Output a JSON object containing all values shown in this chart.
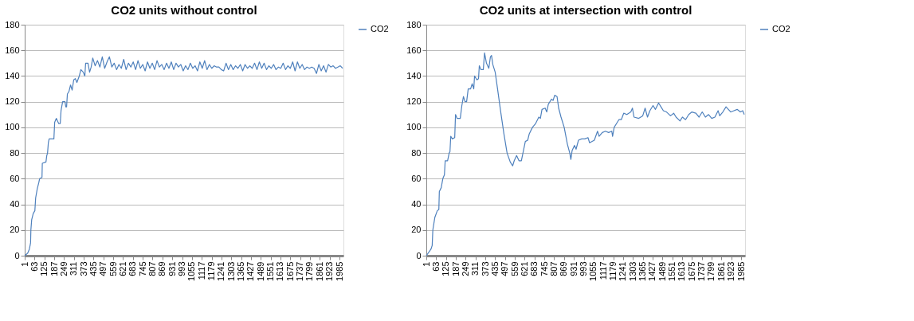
{
  "chart_data": [
    {
      "type": "line",
      "title": "CO2 units without control",
      "legend": "right",
      "grid": "y",
      "xlim": [
        1,
        2010
      ],
      "xticks": [
        1,
        63,
        125,
        187,
        249,
        311,
        373,
        435,
        497,
        559,
        621,
        683,
        745,
        807,
        869,
        931,
        993,
        1055,
        1117,
        1179,
        1241,
        1303,
        1365,
        1427,
        1489,
        1551,
        1613,
        1675,
        1737,
        1799,
        1861,
        1923,
        1985
      ],
      "ylim": [
        0,
        180
      ],
      "yticks": [
        0,
        20,
        40,
        60,
        80,
        100,
        120,
        140,
        160,
        180
      ],
      "series": [
        {
          "name": "CO2",
          "color": "#4f81bd",
          "x": [
            1,
            20,
            30,
            35,
            38,
            40,
            45,
            55,
            65,
            70,
            80,
            90,
            95,
            110,
            112,
            135,
            140,
            145,
            150,
            155,
            185,
            190,
            200,
            215,
            225,
            230,
            240,
            255,
            260,
            265,
            270,
            280,
            290,
            300,
            310,
            320,
            330,
            345,
            355,
            370,
            380,
            385,
            400,
            410,
            420,
            430,
            445,
            460,
            475,
            490,
            505,
            520,
            535,
            550,
            565,
            580,
            595,
            610,
            625,
            640,
            655,
            670,
            685,
            700,
            715,
            730,
            745,
            760,
            775,
            790,
            805,
            820,
            835,
            850,
            865,
            880,
            895,
            910,
            925,
            940,
            955,
            970,
            985,
            1000,
            1015,
            1030,
            1045,
            1060,
            1075,
            1090,
            1105,
            1120,
            1135,
            1150,
            1165,
            1180,
            1195,
            1210,
            1225,
            1240,
            1255,
            1270,
            1285,
            1300,
            1315,
            1330,
            1345,
            1360,
            1375,
            1390,
            1405,
            1420,
            1435,
            1450,
            1465,
            1480,
            1495,
            1510,
            1525,
            1540,
            1555,
            1570,
            1585,
            1600,
            1615,
            1630,
            1645,
            1660,
            1675,
            1690,
            1705,
            1720,
            1735,
            1750,
            1765,
            1780,
            1795,
            1810,
            1825,
            1840,
            1855,
            1870,
            1885,
            1900,
            1915,
            1930,
            1945,
            1960,
            1975,
            1990,
            2005
          ],
          "values": [
            0,
            2,
            5,
            8,
            10,
            20,
            28,
            33,
            35,
            45,
            52,
            57,
            60,
            61,
            72,
            73,
            78,
            80,
            88,
            91,
            91,
            104,
            107,
            103,
            103,
            113,
            120,
            120,
            116,
            116,
            126,
            128,
            133,
            129,
            137,
            138,
            135,
            140,
            145,
            143,
            140,
            150,
            150,
            143,
            147,
            154,
            148,
            152,
            147,
            155,
            146,
            151,
            155,
            147,
            150,
            145,
            149,
            146,
            153,
            145,
            150,
            147,
            151,
            145,
            152,
            146,
            149,
            144,
            151,
            146,
            150,
            145,
            152,
            147,
            149,
            145,
            150,
            146,
            151,
            145,
            150,
            147,
            149,
            144,
            148,
            145,
            150,
            146,
            148,
            144,
            151,
            146,
            152,
            145,
            149,
            146,
            148,
            147,
            147,
            145,
            144,
            150,
            145,
            149,
            145,
            148,
            146,
            149,
            144,
            149,
            146,
            148,
            146,
            150,
            145,
            151,
            146,
            150,
            145,
            148,
            146,
            149,
            145,
            147,
            146,
            150,
            145,
            148,
            146,
            151,
            144,
            151,
            146,
            149,
            145,
            147,
            146,
            147,
            146,
            142,
            149,
            144,
            148,
            143,
            149,
            147,
            148,
            146,
            147,
            148,
            146
          ]
        }
      ]
    },
    {
      "type": "line",
      "title": "CO2 units at intersection with control",
      "legend": "right",
      "grid": "y",
      "xlim": [
        1,
        2010
      ],
      "xticks": [
        1,
        63,
        125,
        187,
        249,
        311,
        373,
        435,
        497,
        559,
        621,
        683,
        745,
        807,
        869,
        931,
        993,
        1055,
        1117,
        1179,
        1241,
        1303,
        1365,
        1427,
        1489,
        1551,
        1613,
        1675,
        1737,
        1799,
        1861,
        1923,
        1985
      ],
      "ylim": [
        0,
        180
      ],
      "yticks": [
        0,
        20,
        40,
        60,
        80,
        100,
        120,
        140,
        160,
        180
      ],
      "series": [
        {
          "name": "CO2",
          "color": "#4f81bd",
          "x": [
            1,
            30,
            38,
            42,
            55,
            70,
            80,
            83,
            95,
            105,
            115,
            120,
            135,
            145,
            150,
            155,
            165,
            180,
            185,
            195,
            215,
            225,
            235,
            245,
            255,
            265,
            280,
            290,
            300,
            305,
            320,
            330,
            335,
            345,
            360,
            368,
            380,
            395,
            405,
            412,
            420,
            435,
            450,
            470,
            490,
            510,
            530,
            545,
            555,
            570,
            585,
            600,
            615,
            625,
            640,
            650,
            670,
            690,
            710,
            720,
            730,
            750,
            760,
            770,
            790,
            800,
            810,
            825,
            835,
            850,
            870,
            890,
            905,
            912,
            920,
            935,
            945,
            960,
            980,
            1000,
            1020,
            1030,
            1060,
            1080,
            1090,
            1110,
            1130,
            1150,
            1170,
            1175,
            1185,
            1200,
            1215,
            1230,
            1245,
            1265,
            1290,
            1300,
            1310,
            1340,
            1365,
            1380,
            1395,
            1410,
            1430,
            1445,
            1465,
            1480,
            1495,
            1515,
            1540,
            1560,
            1575,
            1600,
            1615,
            1635,
            1655,
            1675,
            1700,
            1720,
            1740,
            1760,
            1780,
            1800,
            1820,
            1840,
            1850,
            1870,
            1890,
            1905,
            1920,
            1940,
            1960,
            1980,
            1995,
            2005
          ],
          "values": [
            0,
            5,
            8,
            20,
            30,
            35,
            36,
            50,
            53,
            60,
            63,
            74,
            74,
            80,
            81,
            93,
            91,
            92,
            110,
            107,
            107,
            117,
            124,
            120,
            120,
            130,
            130,
            134,
            130,
            140,
            137,
            138,
            148,
            145,
            145,
            158,
            150,
            146,
            155,
            156,
            149,
            143,
            130,
            112,
            95,
            80,
            73,
            70,
            74,
            78,
            74,
            74,
            83,
            89,
            90,
            95,
            100,
            103,
            108,
            107,
            114,
            115,
            112,
            118,
            122,
            121,
            125,
            124,
            115,
            108,
            100,
            87,
            80,
            75,
            82,
            86,
            83,
            90,
            91,
            91,
            92,
            88,
            90,
            97,
            93,
            96,
            97,
            96,
            97,
            93,
            100,
            103,
            106,
            106,
            111,
            110,
            112,
            115,
            108,
            107,
            109,
            115,
            108,
            113,
            117,
            114,
            119,
            116,
            113,
            112,
            109,
            111,
            108,
            105,
            108,
            106,
            110,
            112,
            111,
            108,
            112,
            108,
            110,
            107,
            108,
            113,
            109,
            112,
            116,
            114,
            112,
            113,
            114,
            112,
            113,
            110
          ]
        }
      ]
    }
  ]
}
